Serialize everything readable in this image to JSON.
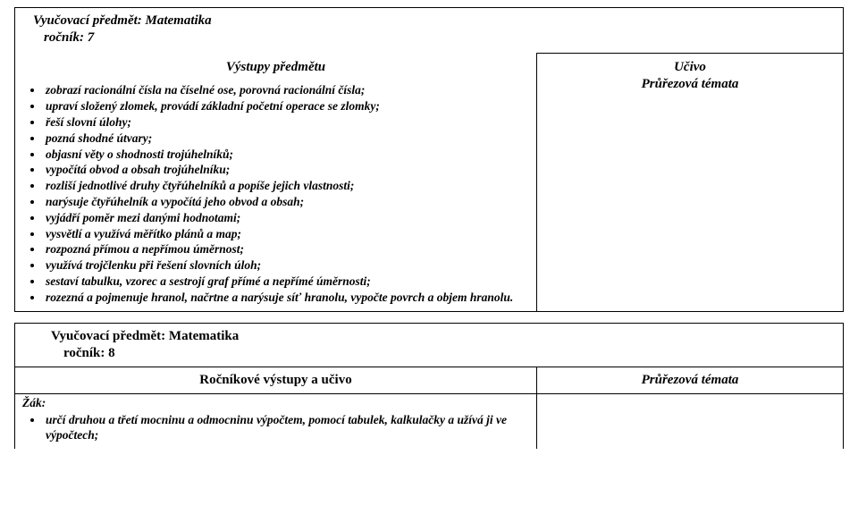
{
  "top": {
    "subject_line": "Vyučovací předmět: Matematika",
    "grade_line": "ročník: 7",
    "col1_heading": "Výstupy předmětu",
    "col2_line1": "Učivo",
    "col2_line2": "Průřezová témata",
    "bullets": [
      "zobrazí racionální čísla na číselné ose, porovná racionální čísla;",
      "upraví složený zlomek, provádí základní početní operace se zlomky;",
      "řeší slovní úlohy;",
      "pozná shodné útvary;",
      "objasní věty o shodnosti trojúhelníků;",
      "vypočítá obvod a obsah trojúhelníku;",
      "rozliší jednotlivé druhy čtyřúhelníků a popíše jejich vlastnosti;",
      "narýsuje čtyřúhelník a vypočítá jeho obvod a obsah;",
      "vyjádří poměr mezi danými hodnotami;",
      "vysvětlí a využívá měřítko plánů a map;",
      "rozpozná přímou a nepřímou úměrnost;",
      "využívá trojčlenku při řešení slovních úloh;",
      "sestaví tabulku, vzorec a sestrojí graf přímé a nepřímé úměrnosti;",
      "rozezná a pojmenuje hranol, načrtne a narýsuje síť hranolu, vypočte povrch a objem hranolu."
    ]
  },
  "bottom": {
    "subject_line": "Vyučovací předmět: Matematika",
    "grade_line": "ročník: 8",
    "col1_heading": "Ročníkové výstupy a učivo",
    "col2_heading": "Průřezová témata",
    "zak_label": "Žák:",
    "bullets": [
      "určí druhou a třetí mocninu a odmocninu výpočtem, pomocí tabulek, kalkulačky a užívá ji ve výpočtech;"
    ]
  }
}
